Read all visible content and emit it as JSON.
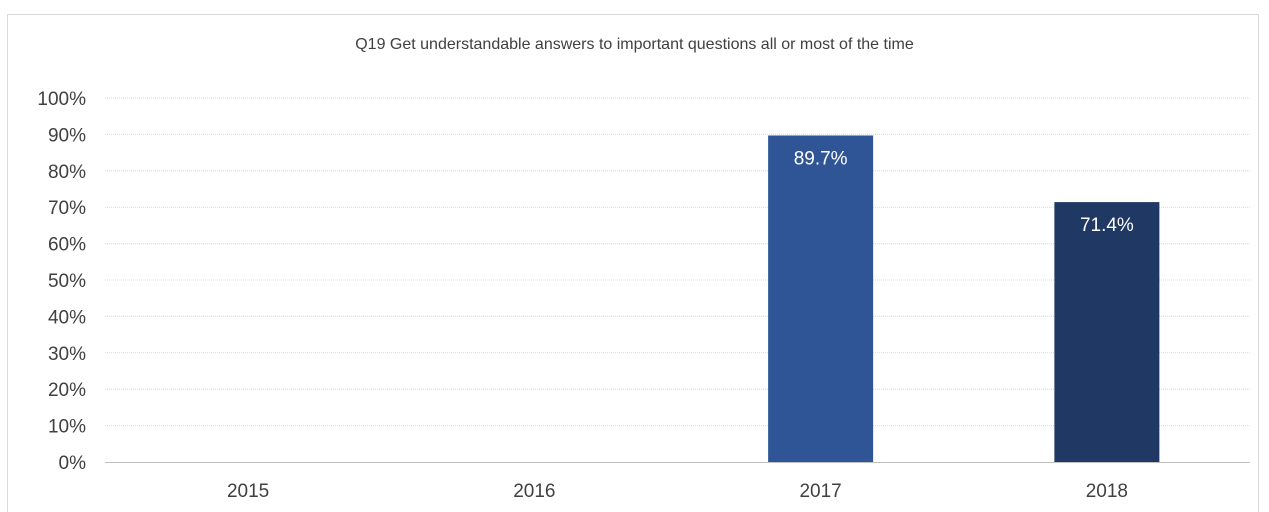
{
  "chart_data": {
    "type": "bar",
    "title": "Q19 Get understandable answers to important questions all or most of the time",
    "categories": [
      "2015",
      "2016",
      "2017",
      "2018"
    ],
    "values": [
      null,
      null,
      89.7,
      71.4
    ],
    "data_labels": [
      "",
      "",
      "89.7%",
      "71.4%"
    ],
    "bar_colors": [
      "#2f5597",
      "#2f5597",
      "#2f5597",
      "#1f3864"
    ],
    "ylim": [
      0,
      100
    ],
    "yticks": [
      "0%",
      "10%",
      "20%",
      "30%",
      "40%",
      "50%",
      "60%",
      "70%",
      "80%",
      "90%",
      "100%"
    ],
    "xlabel": "",
    "ylabel": "",
    "grid": true,
    "legend": false
  },
  "colors": {
    "grid": "#d9d9d9",
    "axis": "#bfbfbf",
    "text": "#404040"
  }
}
